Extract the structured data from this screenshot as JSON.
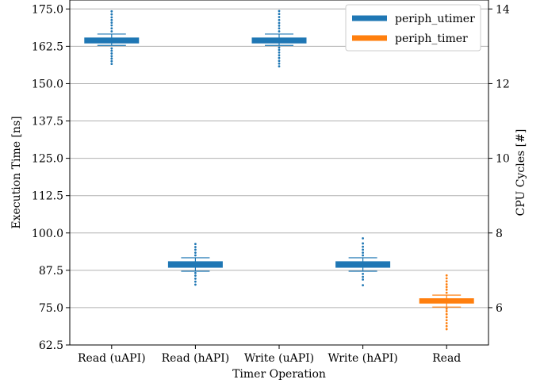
{
  "chart_data": {
    "type": "box",
    "xlabel": "Timer Operation",
    "ylabel": "Execution Time [ns]",
    "y2label": "CPU Cycles [#]",
    "ylim": [
      62.5,
      178
    ],
    "yticks": [
      "62.5",
      "75.0",
      "87.5",
      "100.0",
      "112.5",
      "125.0",
      "137.5",
      "150.0",
      "162.5",
      "175.0"
    ],
    "y2ticks": [
      "6",
      "8",
      "10",
      "12",
      "14"
    ],
    "y2_per_y": 0.08,
    "grid": true,
    "legend_position": "top-right",
    "categories": [
      "Read (uAPI)",
      "Read (hAPI)",
      "Write (uAPI)",
      "Write (hAPI)",
      "Read"
    ],
    "series": [
      {
        "name": "periph_utimer",
        "color": "#1f77b4"
      },
      {
        "name": "periph_timer",
        "color": "#ff7f0e"
      }
    ],
    "boxes": [
      {
        "category": "Read (uAPI)",
        "series": "periph_utimer",
        "whisker_low": 162.8,
        "q1": 163.6,
        "median": 164.4,
        "q3": 165.3,
        "whisker_high": 166.6,
        "outliers": [
          156.6,
          157.5,
          158.4,
          159.2,
          160.1,
          161.0,
          161.8,
          167.5,
          168.5,
          169.5,
          170.4,
          171.3,
          172.2,
          173.2,
          174.2
        ]
      },
      {
        "category": "Read (hAPI)",
        "series": "periph_utimer",
        "whisker_low": 87.2,
        "q1": 88.5,
        "median": 89.4,
        "q3": 90.4,
        "whisker_high": 91.7,
        "outliers": [
          82.7,
          83.7,
          84.7,
          85.7,
          86.6,
          92.5,
          93.4,
          94.4,
          95.3,
          96.3
        ]
      },
      {
        "category": "Write (uAPI)",
        "series": "periph_utimer",
        "whisker_low": 162.8,
        "q1": 163.6,
        "median": 164.4,
        "q3": 165.3,
        "whisker_high": 166.6,
        "outliers": [
          155.8,
          156.7,
          157.6,
          158.6,
          159.5,
          160.4,
          161.3,
          162.1,
          167.5,
          168.5,
          169.4,
          170.3,
          171.3,
          172.3,
          173.3,
          174.3
        ]
      },
      {
        "category": "Write (hAPI)",
        "series": "periph_utimer",
        "whisker_low": 87.2,
        "q1": 88.5,
        "median": 89.4,
        "q3": 90.4,
        "whisker_high": 91.7,
        "outliers": [
          82.5,
          84.4,
          85.3,
          86.3,
          92.5,
          93.4,
          94.4,
          95.4,
          96.5,
          98.2
        ]
      },
      {
        "category": "Read",
        "series": "periph_timer",
        "whisker_low": 75.2,
        "q1": 76.5,
        "median": 77.2,
        "q3": 78.0,
        "whisker_high": 79.2,
        "outliers": [
          67.8,
          68.8,
          69.8,
          70.8,
          71.8,
          72.8,
          73.8,
          74.6,
          80.0,
          81.0,
          81.9,
          82.8,
          83.8,
          84.8,
          85.8
        ]
      }
    ]
  }
}
